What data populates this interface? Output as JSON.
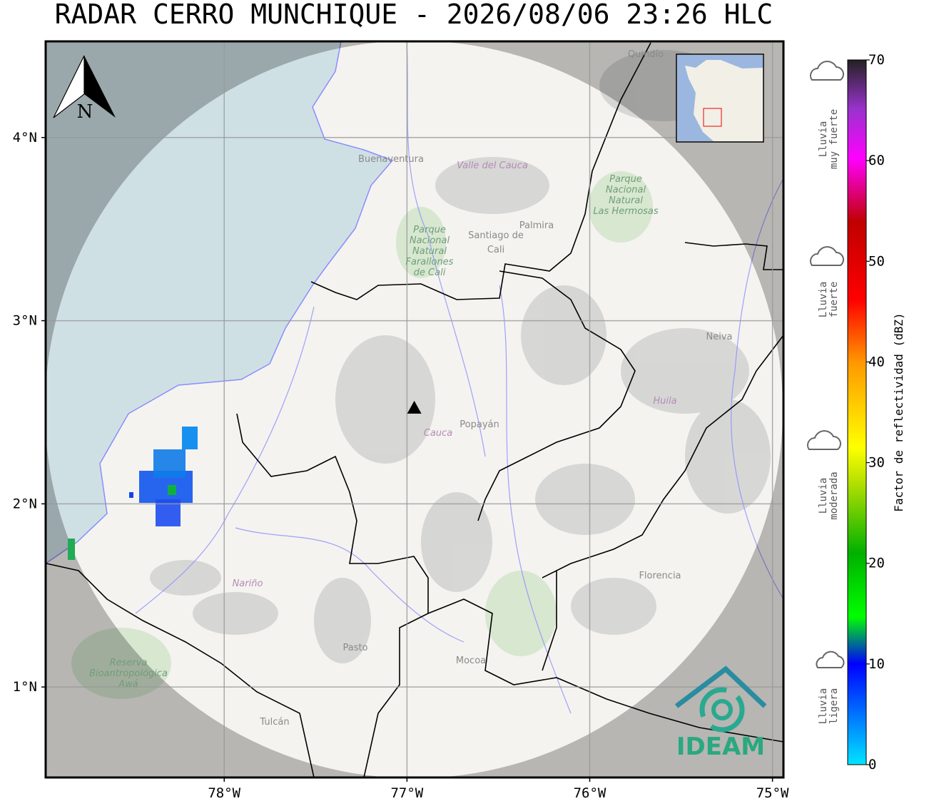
{
  "title": "RADAR CERRO MUNCHIQUE - 2026/08/06 23:26 HLC",
  "map": {
    "xlim": [
      -78.977,
      -74.94
    ],
    "ylim": [
      0.506,
      4.525
    ],
    "xticks": [
      {
        "value": -78,
        "label": "78°W"
      },
      {
        "value": -77,
        "label": "77°W"
      },
      {
        "value": -76,
        "label": "76°W"
      },
      {
        "value": -75,
        "label": "75°W"
      }
    ],
    "yticks": [
      {
        "value": 1,
        "label": "1°N"
      },
      {
        "value": 2,
        "label": "2°N"
      },
      {
        "value": 3,
        "label": "3°N"
      },
      {
        "value": 4,
        "label": "4°N"
      }
    ],
    "grid": true,
    "radar_site": {
      "lon": -76.96,
      "lat": 2.52
    },
    "north_label": "N",
    "places": [
      {
        "lines": [
          "Quindío"
        ]
      },
      {
        "lines": [
          "Buenaventura"
        ]
      },
      {
        "lines": [
          "Valle del Cauca"
        ]
      },
      {
        "lines": [
          "Palmira"
        ]
      },
      {
        "lines": [
          "Santiago de",
          "Cali"
        ]
      },
      {
        "lines": [
          "Parque",
          "Nacional",
          "Natural",
          "Farallones",
          "de Cali"
        ]
      },
      {
        "lines": [
          "Parque",
          "Nacional",
          "Natural",
          "Las Hermosas"
        ]
      },
      {
        "lines": [
          "Neiva"
        ]
      },
      {
        "lines": [
          "Huila"
        ]
      },
      {
        "lines": [
          "Cauca"
        ]
      },
      {
        "lines": [
          "Popayán"
        ]
      },
      {
        "lines": [
          "Nariño"
        ]
      },
      {
        "lines": [
          "Pasto"
        ]
      },
      {
        "lines": [
          "Mocoa"
        ]
      },
      {
        "lines": [
          "Florencia"
        ]
      },
      {
        "lines": [
          "Tulcán"
        ]
      },
      {
        "lines": [
          "Reserva",
          "Bioantropológica",
          "Awá"
        ]
      }
    ]
  },
  "colorbar": {
    "label": "Factor de reflectividad (dBZ)",
    "ylim": [
      0,
      70
    ],
    "yticks": [
      0,
      10,
      20,
      30,
      40,
      50,
      60,
      70
    ]
  },
  "rain_categories": [
    {
      "lines": [
        "Lluvia",
        "muy fuerte"
      ]
    },
    {
      "lines": [
        "Lluvia",
        "fuerte"
      ]
    },
    {
      "lines": [
        "Lluvia",
        "moderada"
      ]
    },
    {
      "lines": [
        "Lluvia",
        "ligera"
      ]
    }
  ],
  "logo": "IDEAM"
}
